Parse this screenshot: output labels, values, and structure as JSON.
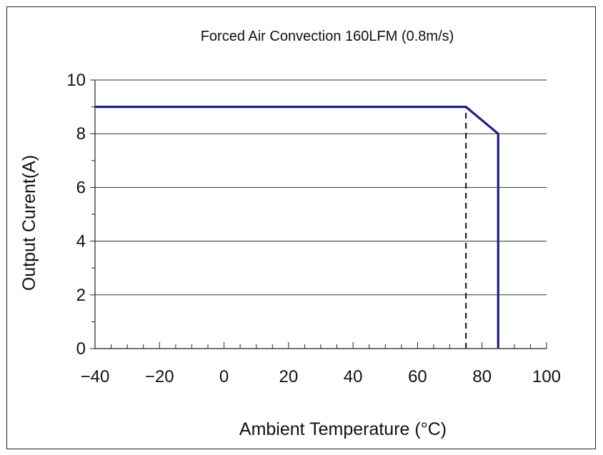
{
  "chart_data": {
    "type": "line",
    "title": "Forced Air Convection 160LFM (0.8m/s)",
    "xlabel": "Ambient Temperature (°C)",
    "ylabel": "Output Curent(A)",
    "xlim": [
      -40,
      100
    ],
    "ylim": [
      0,
      10
    ],
    "x_ticks": [
      -40,
      -20,
      0,
      20,
      40,
      60,
      80,
      100
    ],
    "x_tick_labels": [
      "−40",
      "−20",
      "0",
      "20",
      "40",
      "60",
      "80",
      "100"
    ],
    "y_ticks": [
      0,
      2,
      4,
      6,
      8,
      10
    ],
    "y_tick_labels": [
      "0",
      "2",
      "4",
      "6",
      "8",
      "10"
    ],
    "grid": "horizontal",
    "legend": "none",
    "series": [
      {
        "color": "#1a1f8a",
        "x": [
          -40,
          75,
          85,
          85
        ],
        "y": [
          9,
          9,
          8,
          0
        ]
      }
    ],
    "annotations": [
      {
        "type": "dashed-vertical-line",
        "x": 75,
        "y_from": 0,
        "y_to": 9,
        "color": "#111111"
      }
    ]
  }
}
